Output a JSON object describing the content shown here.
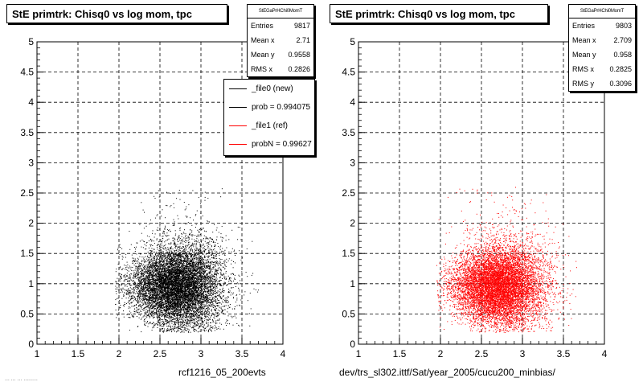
{
  "pads": [
    {
      "title": "StE primtrk: Chisq0 vs log mom, tpc",
      "caption": "rcf1216_05_200evts",
      "stats": {
        "name": "StEGaPrHChi0MomT",
        "rows": [
          {
            "label": "Entries",
            "value": "9817"
          },
          {
            "label": "Mean x",
            "value": "2.71"
          },
          {
            "label": "Mean y",
            "value": "0.9558"
          },
          {
            "label": "RMS x",
            "value": "0.2826"
          }
        ]
      },
      "legend": [
        {
          "label": "_file0 (new)",
          "color": "#000000"
        },
        {
          "label": "prob = 0.994075",
          "color": "#000000"
        },
        {
          "label": "_file1 (ref)",
          "color": "#ff0000"
        },
        {
          "label": "probN = 0.99627",
          "color": "#ff0000"
        }
      ]
    },
    {
      "title": "StE primtrk: Chisq0 vs log mom, tpc",
      "caption": "dev/trs_sl302.ittf/Sat/year_2005/cucu200_minbias/",
      "stats": {
        "name": "StEGaPrHChi0MomT",
        "rows": [
          {
            "label": "Entries",
            "value": "9803"
          },
          {
            "label": "Mean x",
            "value": "2.709"
          },
          {
            "label": "Mean y",
            "value": "0.958"
          },
          {
            "label": "RMS x",
            "value": "0.2825"
          },
          {
            "label": "RMS y",
            "value": "0.3096"
          }
        ]
      }
    }
  ],
  "footer_faint": "... ... ... .........",
  "chart_data": [
    {
      "type": "scatter",
      "title": "StE primtrk: Chisq0 vs log mom, tpc",
      "xlim": [
        1,
        4
      ],
      "ylim": [
        0,
        5
      ],
      "xticks": [
        "1",
        "1.5",
        "2",
        "2.5",
        "3",
        "3.5",
        "4"
      ],
      "yticks": [
        "0",
        "0.5",
        "1",
        "1.5",
        "2",
        "2.5",
        "3",
        "3.5",
        "4",
        "4.5",
        "5"
      ],
      "grid": true,
      "color": "#000000",
      "entries": 9817,
      "mean_x": 2.71,
      "mean_y": 0.9558,
      "rms_x": 0.2826,
      "x_range_data": [
        1.95,
        3.7
      ],
      "y_range_data": [
        0.2,
        2.6
      ]
    },
    {
      "type": "scatter",
      "title": "StE primtrk: Chisq0 vs log mom, tpc",
      "xlim": [
        1,
        4
      ],
      "ylim": [
        0,
        5
      ],
      "xticks": [
        "1",
        "1.5",
        "2",
        "2.5",
        "3",
        "3.5",
        "4"
      ],
      "yticks": [
        "0",
        "0.5",
        "1",
        "1.5",
        "2",
        "2.5",
        "3",
        "3.5",
        "4",
        "4.5",
        "5"
      ],
      "grid": true,
      "color": "#ff0000",
      "entries": 9803,
      "mean_x": 2.709,
      "mean_y": 0.958,
      "rms_x": 0.2825,
      "rms_y": 0.3096,
      "x_range_data": [
        1.95,
        3.7
      ],
      "y_range_data": [
        0.2,
        2.6
      ]
    }
  ]
}
